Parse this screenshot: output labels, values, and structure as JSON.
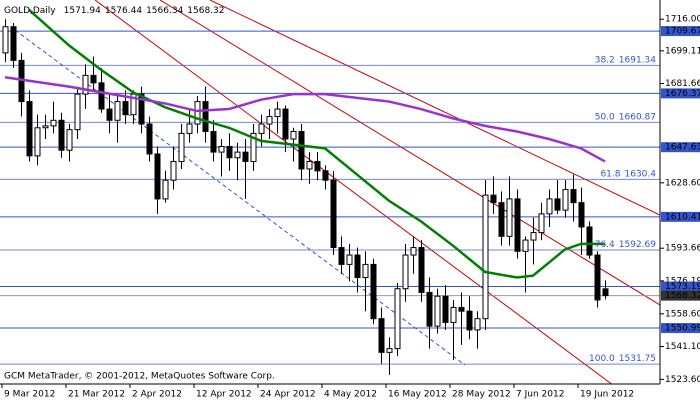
{
  "chart_data": {
    "type": "candlestick",
    "title": "GOLD,Daily",
    "footer": "GCM MetaTrader, © 2001-2012, MetaQuotes Software Corp.",
    "categories": [
      "9 Mar 2012",
      null,
      null,
      null,
      null,
      null,
      null,
      null,
      "21 Mar 2012",
      null,
      null,
      null,
      null,
      null,
      null,
      null,
      "2 Apr 2012",
      null,
      null,
      null,
      null,
      null,
      null,
      null,
      "12 Apr 2012",
      null,
      null,
      null,
      null,
      null,
      null,
      null,
      "24 Apr 2012",
      null,
      null,
      null,
      null,
      null,
      null,
      null,
      "4 May 2012",
      null,
      null,
      null,
      null,
      null,
      null,
      null,
      "16 May 2012",
      null,
      null,
      null,
      null,
      null,
      null,
      null,
      "28 May 2012",
      null,
      null,
      null,
      null,
      null,
      null,
      null,
      "7 Jun 2012",
      null,
      null,
      null,
      null,
      null,
      null,
      null,
      "19 Jun 2012",
      null,
      null,
      null
    ],
    "open": [
      1698,
      1712,
      1694,
      1672,
      1643,
      1658,
      1659,
      1662,
      1646,
      1657,
      1676,
      1686,
      1682,
      1668,
      1662,
      1672,
      1665,
      1676,
      1660,
      1644,
      1620,
      1630,
      1640,
      1655,
      1660,
      1672,
      1656,
      1645,
      1648,
      1642,
      1645,
      1640,
      1655,
      1660,
      1664,
      1668,
      1652,
      1656,
      1636,
      1640,
      1635,
      1630,
      1594,
      1585,
      1590,
      1578,
      1585,
      1556,
      1538,
      1540,
      1572,
      1590,
      1594,
      1570,
      1552,
      1568,
      1554,
      1562,
      1560,
      1550,
      1556,
      1622,
      1618,
      1600,
      1620,
      1592,
      1598,
      1602,
      1612,
      1620,
      1614,
      1625,
      1618,
      1605,
      1590,
      1571.94
    ],
    "high": [
      1716,
      1714,
      1698,
      1678,
      1665,
      1665,
      1672,
      1666,
      1660,
      1680,
      1692,
      1696,
      1690,
      1676,
      1675,
      1678,
      1678,
      1680,
      1664,
      1648,
      1635,
      1648,
      1660,
      1668,
      1675,
      1680,
      1662,
      1652,
      1655,
      1650,
      1652,
      1660,
      1665,
      1668,
      1672,
      1670,
      1658,
      1660,
      1645,
      1645,
      1638,
      1635,
      1600,
      1596,
      1594,
      1592,
      1588,
      1562,
      1546,
      1575,
      1596,
      1600,
      1598,
      1578,
      1572,
      1574,
      1566,
      1570,
      1568,
      1560,
      1630,
      1632,
      1624,
      1632,
      1625,
      1600,
      1610,
      1618,
      1625,
      1630,
      1630,
      1633,
      1626,
      1608,
      1592,
      1576.44
    ],
    "low": [
      1693,
      1690,
      1664,
      1640,
      1638,
      1652,
      1655,
      1642,
      1640,
      1652,
      1668,
      1678,
      1666,
      1655,
      1650,
      1660,
      1660,
      1655,
      1640,
      1612,
      1618,
      1625,
      1636,
      1650,
      1655,
      1650,
      1640,
      1632,
      1635,
      1630,
      1620,
      1635,
      1648,
      1652,
      1655,
      1645,
      1640,
      1630,
      1628,
      1630,
      1625,
      1590,
      1580,
      1576,
      1570,
      1560,
      1553,
      1532,
      1526,
      1536,
      1565,
      1580,
      1565,
      1540,
      1548,
      1550,
      1534,
      1542,
      1545,
      1540,
      1550,
      1612,
      1595,
      1595,
      1588,
      1570,
      1585,
      1598,
      1605,
      1612,
      1610,
      1608,
      1590,
      1588,
      1562,
      1566.34
    ],
    "close": [
      1712,
      1694,
      1672,
      1643,
      1658,
      1659,
      1662,
      1646,
      1657,
      1676,
      1686,
      1682,
      1668,
      1662,
      1672,
      1665,
      1676,
      1660,
      1644,
      1620,
      1630,
      1640,
      1655,
      1660,
      1672,
      1656,
      1645,
      1648,
      1642,
      1645,
      1640,
      1655,
      1660,
      1664,
      1668,
      1652,
      1656,
      1636,
      1640,
      1635,
      1630,
      1594,
      1585,
      1590,
      1578,
      1585,
      1556,
      1538,
      1540,
      1572,
      1590,
      1594,
      1570,
      1552,
      1568,
      1554,
      1562,
      1560,
      1550,
      1556,
      1622,
      1618,
      1600,
      1620,
      1592,
      1598,
      1602,
      1612,
      1620,
      1614,
      1625,
      1618,
      1605,
      1590,
      1566,
      1568.32
    ],
    "series": [
      {
        "color": "#008000",
        "x": [
          3,
          8,
          12,
          16,
          20,
          24,
          28,
          32,
          36,
          40,
          44,
          48,
          52,
          56,
          60,
          64,
          66,
          68,
          70,
          72,
          75
        ],
        "values": [
          1721,
          1702,
          1689,
          1677,
          1669,
          1663,
          1658,
          1651,
          1649,
          1647,
          1633,
          1619,
          1608,
          1595,
          1581,
          1578,
          1579,
          1586,
          1593,
          1596,
          1596
        ]
      },
      {
        "color": "#9933cc",
        "x": [
          0,
          8,
          16,
          20,
          24,
          28,
          32,
          36,
          40,
          44,
          48,
          52,
          56,
          60,
          64,
          68,
          72,
          75
        ],
        "values": [
          1685,
          1680,
          1674,
          1671,
          1667,
          1668,
          1673,
          1676,
          1676,
          1674,
          1672,
          1668,
          1663,
          1659,
          1656,
          1652,
          1647,
          1640
        ]
      }
    ],
    "levels": [
      1709.67,
      1676.37,
      1647.63,
      1610.41,
      1573.19,
      1550.99
    ],
    "fibo": [
      {
        "label": "38.2",
        "value": 1691.34
      },
      {
        "label": "50.0",
        "value": 1660.87
      },
      {
        "label": "61.8",
        "value": 1630.4
      },
      {
        "label": "76.4",
        "value": 1592.69
      },
      {
        "label": "100.0",
        "value": 1531.75
      }
    ],
    "last_price": 1568.32,
    "ylim": [
      1521.1,
      1725.2
    ],
    "yticks": [
      {
        "value": 1716,
        "label": "1716.00"
      },
      1699.11,
      1681.66,
      {
        "value": 1628.6,
        "label": "1628.60"
      },
      1593.66,
      1576.19,
      {
        "value": 1558.6,
        "label": "1558.60"
      },
      {
        "value": 1541.1,
        "label": "1541.10"
      },
      {
        "value": 1523.6,
        "label": "1523.60"
      }
    ]
  }
}
